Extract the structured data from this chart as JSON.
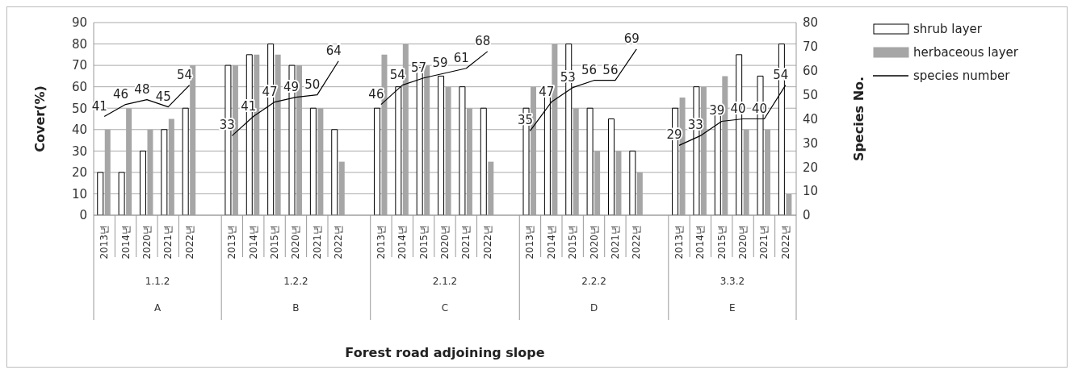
{
  "chart_data": {
    "type": "bar",
    "ylabel": "Cover(%)",
    "y2label": "Species No.",
    "categories": [
      "2013년",
      "2014년",
      "2020년",
      "2021년",
      "2022년",
      null,
      "2013년",
      "2014년",
      "2015년",
      "2020년",
      "2021년",
      "2022년",
      null,
      "2013년",
      "2014년",
      "2015년",
      "2020년",
      "2021년",
      "2022년",
      null,
      "2013년",
      "2014년",
      "2015년",
      "2020년",
      "2021년",
      "2022년",
      null,
      "2013년",
      "2014년",
      "2015년",
      "2020년",
      "2021년",
      "2022년"
    ],
    "series": [
      {
        "name": "shrub layer",
        "color": "#ffffff",
        "values": [
          20,
          20,
          30,
          40,
          50,
          null,
          70,
          75,
          80,
          70,
          50,
          40,
          null,
          50,
          60,
          69,
          65,
          60,
          50,
          null,
          50,
          60,
          80,
          50,
          45,
          30,
          null,
          50,
          60,
          50,
          75,
          65,
          80
        ]
      },
      {
        "name": "herbaceous layer",
        "color": "#a6a6a6",
        "values": [
          40,
          50,
          40,
          45,
          70,
          null,
          70,
          75,
          75,
          70,
          50,
          25,
          null,
          75,
          80,
          70,
          60,
          50,
          25,
          null,
          60,
          80,
          50,
          30,
          30,
          20,
          null,
          55,
          60,
          65,
          40,
          40,
          10
        ]
      },
      {
        "name": "species number",
        "type": "line",
        "axis": "y2",
        "color": "#000000",
        "values": [
          41,
          46,
          48,
          45,
          54,
          null,
          33,
          41,
          47,
          49,
          50,
          64,
          null,
          46,
          54,
          57,
          59,
          61,
          68,
          null,
          35,
          47,
          53,
          56,
          56,
          69,
          null,
          29,
          33,
          39,
          40,
          40,
          54
        ],
        "value_labels": [
          "41",
          "46",
          "48",
          "45",
          "54",
          null,
          "33",
          "41",
          "47",
          "49",
          "50",
          "64",
          null,
          "46",
          "54",
          "57",
          "59",
          "61",
          "68",
          null,
          "35",
          "47",
          "53",
          "56",
          "56",
          "69",
          null,
          "29",
          "33",
          "39",
          "40",
          "40",
          "54"
        ]
      }
    ],
    "ylim": [
      0,
      90
    ],
    "yticks": [
      0,
      10,
      20,
      30,
      40,
      50,
      60,
      70,
      80,
      90
    ],
    "y2lim": [
      0,
      80
    ],
    "y2ticks": [
      0,
      10,
      20,
      30,
      40,
      50,
      60,
      70,
      80
    ],
    "grid": "y",
    "legend": "top right",
    "marker": "none",
    "annotations": [
      "1.1.2",
      "A",
      "1.2.2",
      "B",
      "2.1.2",
      "C",
      "2.2.2",
      "D",
      "3.3.2",
      "E",
      "Forest road adjoining slope"
    ]
  }
}
